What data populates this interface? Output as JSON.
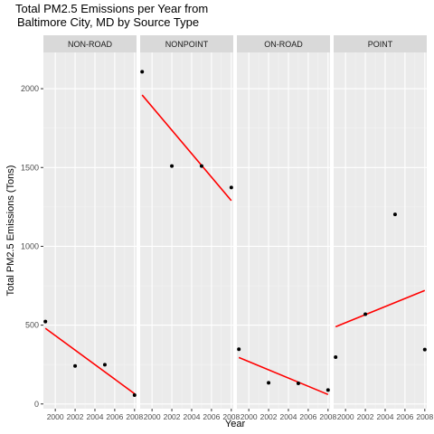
{
  "chart_data": {
    "type": "scatter",
    "title_lines": [
      "Total PM2.5 Emissions per Year from",
      "Baltimore City, MD by Source Type"
    ],
    "xlabel": "Year",
    "ylabel": "Total PM2.5 Emissions (Tons)",
    "x_ticks": [
      2000,
      2002,
      2004,
      2006,
      2008
    ],
    "y_ticks": [
      0,
      500,
      1000,
      1500,
      2000
    ],
    "xlim": [
      1998.8,
      2008.2
    ],
    "ylim": [
      -30,
      2230
    ],
    "grid": true,
    "point_color": "#000000",
    "trend_color": "#ff0000",
    "panel_bg": "#ebebeb",
    "strip_bg": "#d9d9d9",
    "panels": [
      {
        "name": "NON-ROAD",
        "points": [
          {
            "x": 1999,
            "y": 522.94
          },
          {
            "x": 2002,
            "y": 240.85
          },
          {
            "x": 2005,
            "y": 248.93
          },
          {
            "x": 2008,
            "y": 55.82
          }
        ],
        "trend": [
          {
            "x": 1999,
            "y": 480
          },
          {
            "x": 2008,
            "y": 65
          }
        ]
      },
      {
        "name": "NONPOINT",
        "points": [
          {
            "x": 1999,
            "y": 2107.63
          },
          {
            "x": 2002,
            "y": 1509.5
          },
          {
            "x": 2005,
            "y": 1509.5
          },
          {
            "x": 2008,
            "y": 1373.21
          }
        ],
        "trend": [
          {
            "x": 1999,
            "y": 1960
          },
          {
            "x": 2008,
            "y": 1290
          }
        ]
      },
      {
        "name": "ON-ROAD",
        "points": [
          {
            "x": 1999,
            "y": 346.82
          },
          {
            "x": 2002,
            "y": 134.31
          },
          {
            "x": 2005,
            "y": 130.43
          },
          {
            "x": 2008,
            "y": 88.28
          }
        ],
        "trend": [
          {
            "x": 1999,
            "y": 295
          },
          {
            "x": 2008,
            "y": 60
          }
        ]
      },
      {
        "name": "POINT",
        "points": [
          {
            "x": 1999,
            "y": 296.8
          },
          {
            "x": 2002,
            "y": 569.26
          },
          {
            "x": 2005,
            "y": 1202.49
          },
          {
            "x": 2008,
            "y": 344.98
          }
        ],
        "trend": [
          {
            "x": 1999,
            "y": 490
          },
          {
            "x": 2008,
            "y": 720
          }
        ]
      }
    ]
  }
}
